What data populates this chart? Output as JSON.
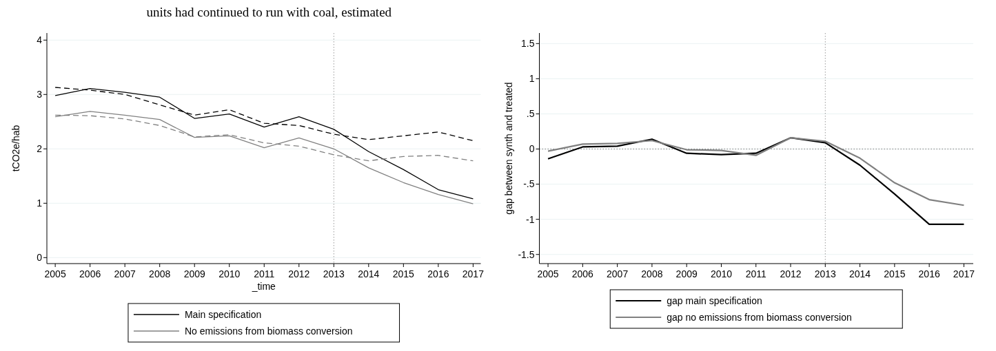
{
  "chart_data": [
    {
      "type": "line",
      "annotations": [
        "units had continued to run with coal, estimated"
      ],
      "xlabel": "_time",
      "ylabel": "tCO2e/hab",
      "x": [
        2005,
        2006,
        2007,
        2008,
        2009,
        2010,
        2011,
        2012,
        2013,
        2014,
        2015,
        2016,
        2017
      ],
      "series": [
        {
          "name": "Main specification",
          "color": "#000000",
          "line_style": "solid",
          "values": [
            2.98,
            3.11,
            3.04,
            2.95,
            2.56,
            2.64,
            2.4,
            2.59,
            2.36,
            1.95,
            1.62,
            1.25,
            1.08
          ]
        },
        {
          "name": "No emissions from biomass conversion",
          "color": "#808080",
          "line_style": "solid",
          "values": [
            2.59,
            2.69,
            2.62,
            2.54,
            2.21,
            2.24,
            2.02,
            2.2,
            2.0,
            1.65,
            1.38,
            1.16,
            0.99
          ]
        },
        {
          "color": "#000000",
          "line_style": "dashed",
          "values": [
            3.13,
            3.08,
            3.0,
            2.81,
            2.62,
            2.72,
            2.47,
            2.43,
            2.27,
            2.17,
            2.24,
            2.31,
            2.15
          ]
        },
        {
          "color": "#808080",
          "line_style": "dashed",
          "values": [
            2.62,
            2.61,
            2.55,
            2.43,
            2.22,
            2.26,
            2.11,
            2.05,
            1.89,
            1.78,
            1.86,
            1.88,
            1.78
          ]
        }
      ],
      "xlim": [
        2004.76,
        2017.22
      ],
      "xticks": [
        2005,
        2006,
        2007,
        2008,
        2009,
        2010,
        2011,
        2012,
        2013,
        2014,
        2015,
        2016,
        2017
      ],
      "ylim": [
        -0.11,
        4.13
      ],
      "yticks": [
        0,
        1,
        2,
        3,
        4
      ],
      "grid": "y",
      "legend": "bottom",
      "ref_lines": [
        {
          "axis": "x",
          "value": 2013,
          "color": "#999999",
          "line_style": "dotted"
        }
      ]
    },
    {
      "type": "line",
      "ylabel": "gap between synth and treated",
      "x": [
        2005,
        2006,
        2007,
        2008,
        2009,
        2010,
        2011,
        2012,
        2013,
        2014,
        2015,
        2016,
        2017
      ],
      "series": [
        {
          "name": "gap main specification",
          "color": "#000000",
          "line_style": "solid",
          "values": [
            -0.14,
            0.03,
            0.04,
            0.14,
            -0.06,
            -0.08,
            -0.06,
            0.16,
            0.09,
            -0.23,
            -0.64,
            -1.07,
            -1.07
          ]
        },
        {
          "name": "gap no emissions from biomass conversion",
          "color": "#808080",
          "line_style": "solid",
          "values": [
            -0.03,
            0.07,
            0.08,
            0.12,
            -0.01,
            -0.02,
            -0.09,
            0.16,
            0.11,
            -0.13,
            -0.48,
            -0.72,
            -0.8
          ]
        }
      ],
      "xlim": [
        2004.75,
        2017.27
      ],
      "xticks": [
        2005,
        2006,
        2007,
        2008,
        2009,
        2010,
        2011,
        2012,
        2013,
        2014,
        2015,
        2016,
        2017
      ],
      "ylim": [
        -1.63,
        1.65
      ],
      "yticks": [
        {
          "value": -1.5,
          "label": "-1.5"
        },
        -1,
        {
          "value": -0.5,
          "label": "-.5"
        },
        0,
        {
          "value": 0.5,
          "label": ".5"
        },
        1,
        {
          "value": 1.5,
          "label": "1.5"
        }
      ],
      "grid": "y",
      "legend": "bottom",
      "ref_lines": [
        {
          "axis": "x",
          "value": 2013,
          "color": "#999999",
          "line_style": "dotted"
        },
        {
          "axis": "y",
          "value": 0,
          "color": "#777777",
          "line_style": "dotted"
        }
      ]
    }
  ]
}
